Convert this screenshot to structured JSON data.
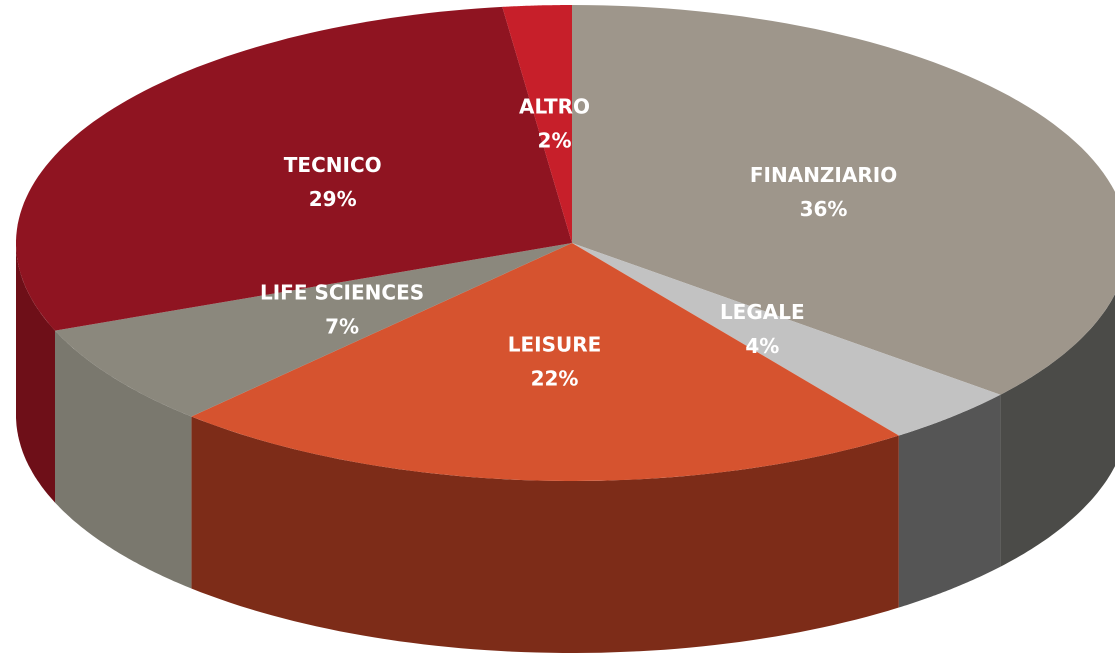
{
  "chart_data": {
    "type": "pie",
    "categories": [
      "FINANZIARIO",
      "LEGALE",
      "LEISURE",
      "LIFE SCIENCES",
      "TECNICO",
      "ALTRO"
    ],
    "values": [
      36,
      4,
      22,
      7,
      29,
      2
    ],
    "value_labels": [
      "36%",
      "4%",
      "22%",
      "7%",
      "29%",
      "2%"
    ],
    "colors": [
      "#9e968b",
      "#c2c2c2",
      "#d6532f",
      "#8b887d",
      "#8f1421",
      "#c71f2a"
    ],
    "side_colors": [
      "#4b4b48",
      "#555555",
      "#7d2c18",
      "#7a786e",
      "#6e0f18",
      "#8a141c"
    ]
  }
}
